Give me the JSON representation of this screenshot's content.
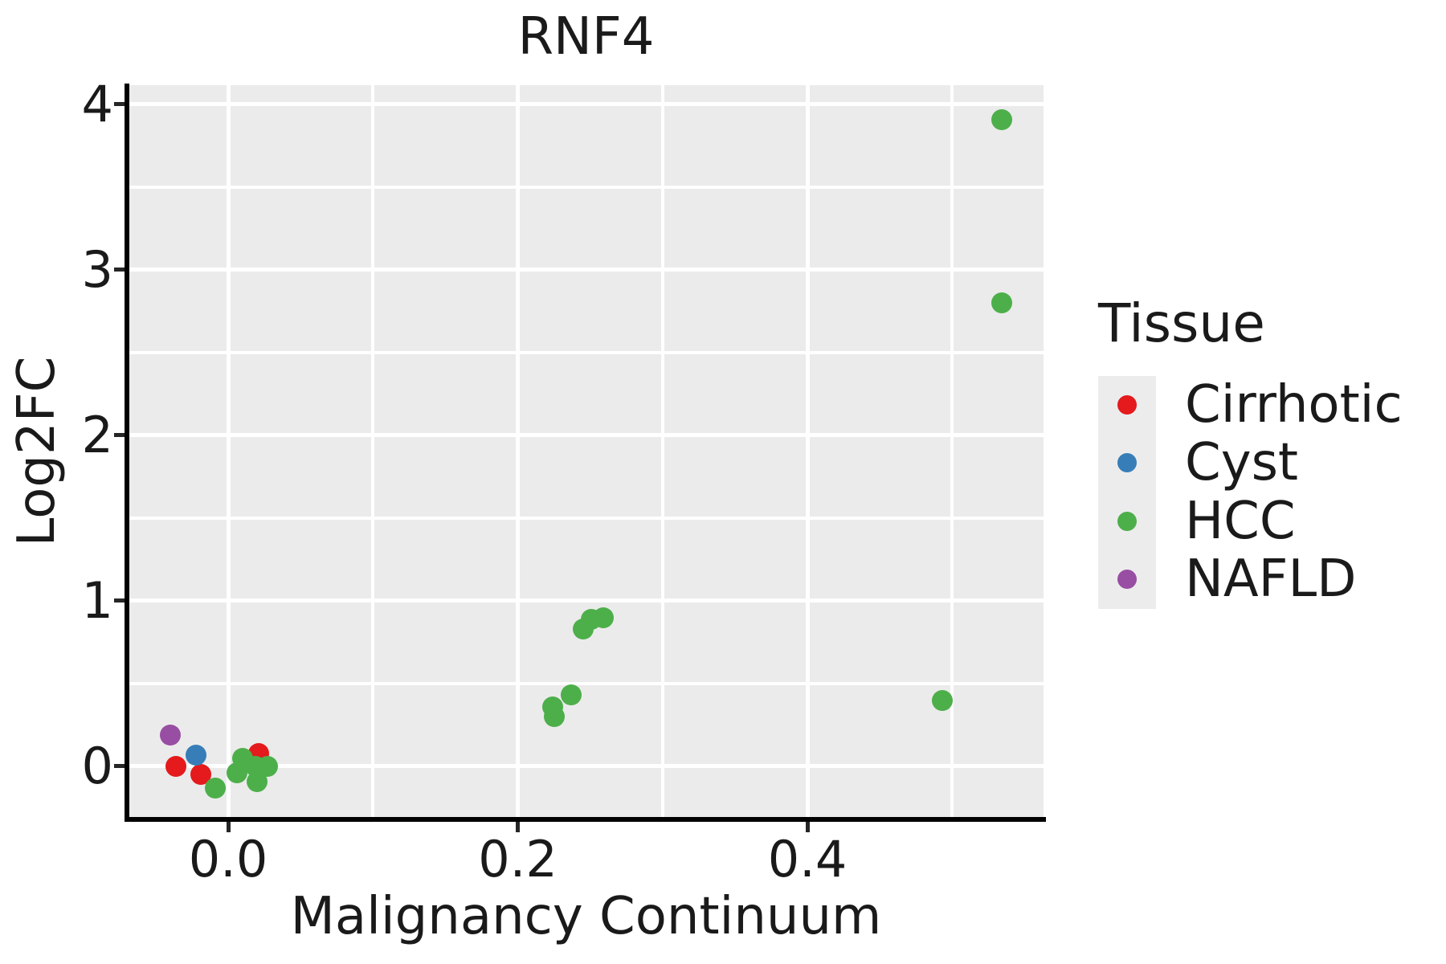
{
  "chart_data": {
    "type": "scatter",
    "title": "RNF4",
    "xlabel": "Malignancy Continuum",
    "ylabel": "Log2FC",
    "x_domain": [
      -0.0688,
      0.5631
    ],
    "y_domain": [
      -0.3204,
      4.1165
    ],
    "x_ticks": {
      "values": [
        0.0,
        0.2,
        0.4
      ],
      "labels": [
        "0.0",
        "0.2",
        "0.4"
      ]
    },
    "x_minor": [
      0.1,
      0.3,
      0.5
    ],
    "y_ticks": {
      "values": [
        0,
        1,
        2,
        3,
        4
      ],
      "labels": [
        "0",
        "1",
        "2",
        "3",
        "4"
      ]
    },
    "y_minor": [
      0.5,
      1.5,
      2.5,
      3.5
    ],
    "grid": true,
    "panel_bg": "#ebebeb",
    "grid_color": "#ffffff",
    "legend": {
      "title": "Tissue",
      "position": "right"
    },
    "series": [
      {
        "name": "Cirrhotic",
        "color": "#e41a1c",
        "points": [
          [
            -0.036,
            0.0
          ],
          [
            -0.019,
            -0.05
          ],
          [
            0.021,
            0.08
          ]
        ]
      },
      {
        "name": "Cyst",
        "color": "#377eb8",
        "points": [
          [
            -0.022,
            0.07
          ]
        ]
      },
      {
        "name": "HCC",
        "color": "#4daf4a",
        "points": [
          [
            -0.009,
            -0.13
          ],
          [
            0.006,
            -0.04
          ],
          [
            0.01,
            0.05
          ],
          [
            0.019,
            0.0
          ],
          [
            0.02,
            -0.09
          ],
          [
            0.027,
            0.0
          ],
          [
            0.224,
            0.36
          ],
          [
            0.225,
            0.3
          ],
          [
            0.237,
            0.43
          ],
          [
            0.245,
            0.83
          ],
          [
            0.251,
            0.89
          ],
          [
            0.259,
            0.9
          ],
          [
            0.493,
            0.4
          ],
          [
            0.534,
            2.8
          ],
          [
            0.534,
            3.91
          ]
        ]
      },
      {
        "name": "NAFLD",
        "color": "#984ea3",
        "points": [
          [
            -0.04,
            0.19
          ]
        ]
      }
    ]
  }
}
